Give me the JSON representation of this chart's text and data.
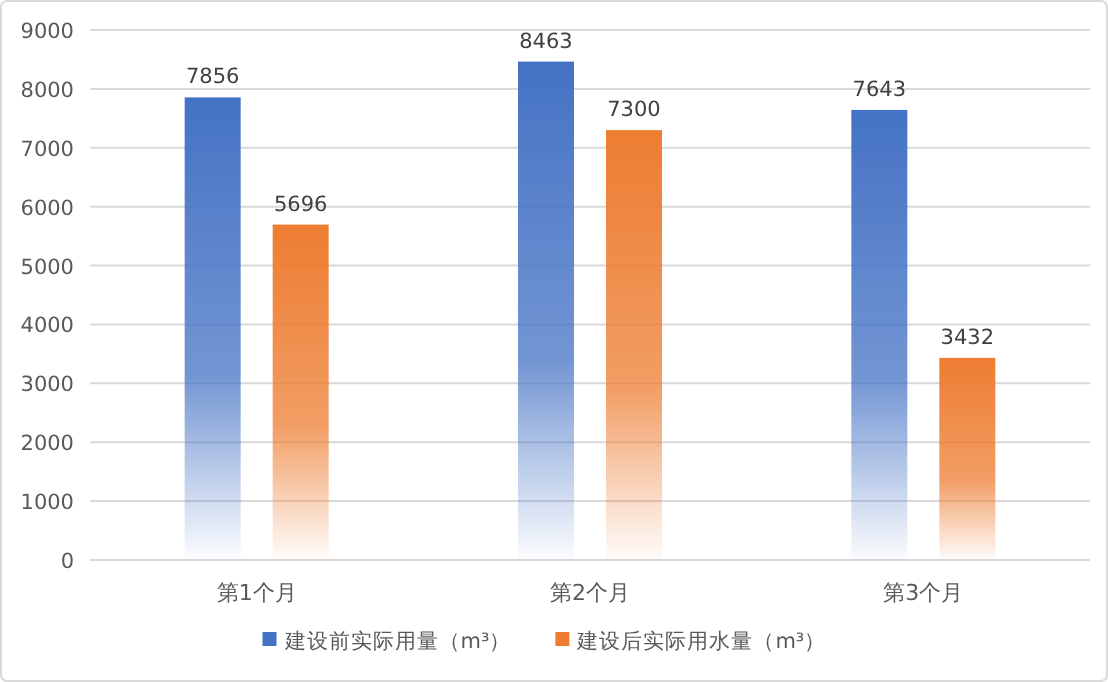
{
  "chart_data": {
    "type": "bar",
    "categories": [
      "第1个月",
      "第2个月",
      "第3个月"
    ],
    "series": [
      {
        "name": "建设前实际用量（m³）",
        "color": "#4472c4",
        "values": [
          7856,
          8463,
          7643
        ]
      },
      {
        "name": "建设后实际用水量（m³）",
        "color": "#ed7d31",
        "values": [
          5696,
          7300,
          3432
        ]
      }
    ],
    "ylim": [
      0,
      9000
    ],
    "yticks": [
      0,
      1000,
      2000,
      3000,
      4000,
      5000,
      6000,
      7000,
      8000,
      9000
    ],
    "grid": "y",
    "legend": "bottom",
    "data_labels": true
  }
}
